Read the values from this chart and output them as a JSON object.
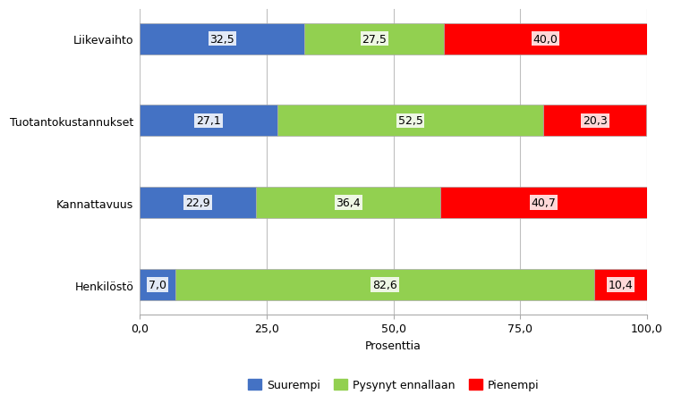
{
  "categories": [
    "Liikevaihto",
    "Tuotantokustannukset",
    "Kannattavuus",
    "Henkilöstö"
  ],
  "suurempi": [
    32.5,
    27.1,
    22.9,
    7.0
  ],
  "pysynyt_ennallaan": [
    27.5,
    52.5,
    36.4,
    82.6
  ],
  "pienempi": [
    40.0,
    20.3,
    40.7,
    10.4
  ],
  "color_suurempi": "#4472C4",
  "color_pysynyt": "#92D050",
  "color_pienempi": "#FF0000",
  "xlabel": "Prosenttia",
  "xlim": [
    0,
    100
  ],
  "xticks": [
    0.0,
    25.0,
    50.0,
    75.0,
    100.0
  ],
  "xtick_labels": [
    "0,0",
    "25,0",
    "50,0",
    "75,0",
    "100,0"
  ],
  "legend_labels": [
    "Suurempi",
    "Pysynyt ennallaan",
    "Pienempi"
  ],
  "bar_height": 0.38,
  "label_fontsize": 9,
  "axis_fontsize": 9,
  "legend_fontsize": 9,
  "background_color": "#FFFFFF",
  "grid_color": "#BFBFBF",
  "bar_edge_color": "#AAAAAA"
}
